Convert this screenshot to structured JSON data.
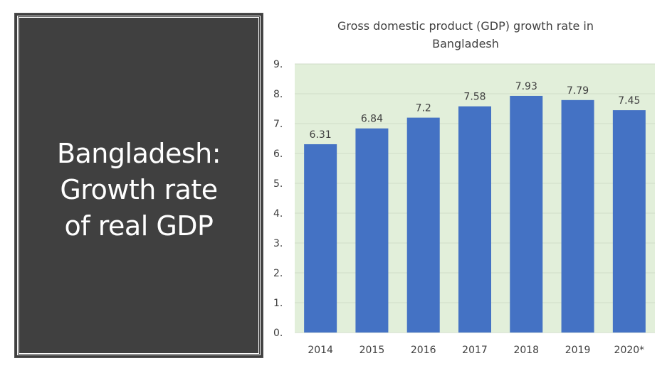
{
  "slide": {
    "title_lines": [
      "Bangladesh:",
      "Growth rate",
      "of real GDP"
    ]
  },
  "chart_data": {
    "type": "bar",
    "title_lines": [
      "Gross domestic product (GDP) growth rate in",
      "Bangladesh"
    ],
    "categories": [
      "2014",
      "2015",
      "2016",
      "2017",
      "2018",
      "2019",
      "2020*"
    ],
    "values": [
      6.31,
      6.84,
      7.2,
      7.58,
      7.93,
      7.79,
      7.45
    ],
    "data_labels": [
      "6.31",
      "6.84",
      "7.2",
      "7.58",
      "7.93",
      "7.79",
      "7.45"
    ],
    "ytick_labels": [
      "0.",
      "1.",
      "2.",
      "3.",
      "4.",
      "5.",
      "6.",
      "7.",
      "8.",
      "9."
    ],
    "ylim": [
      0,
      9
    ],
    "xlabel": "",
    "ylabel": "",
    "grid": true,
    "colors": {
      "bar": "#4472C4",
      "plot_bg": "#E2EFDA",
      "grid": "#D0DCC8",
      "panel": "#404040"
    }
  }
}
